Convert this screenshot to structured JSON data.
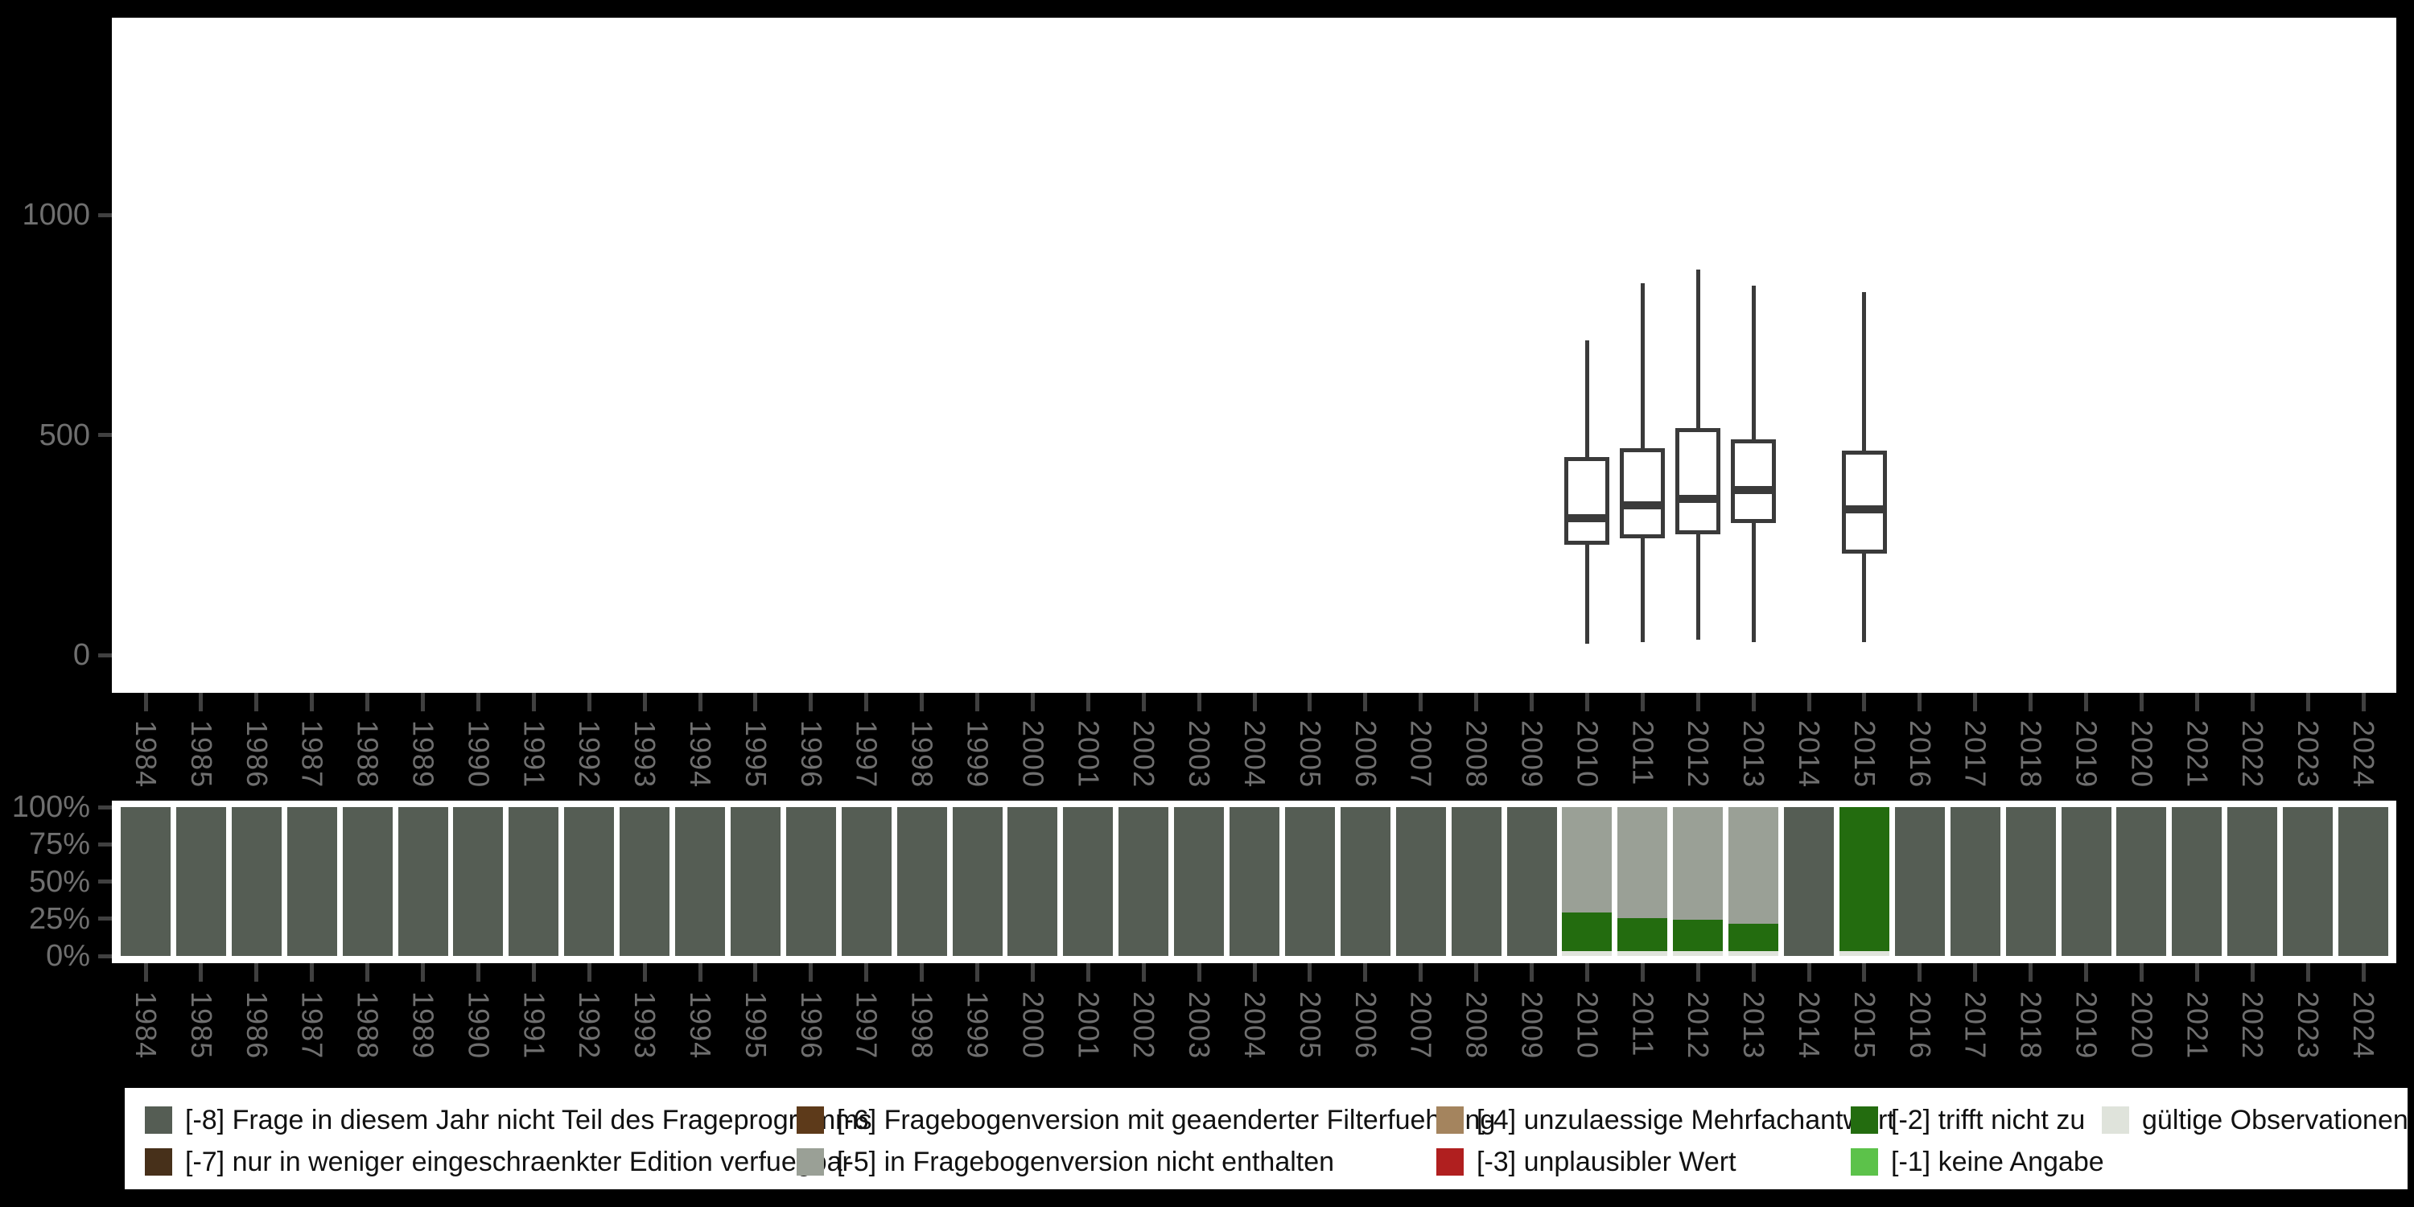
{
  "colors": {
    "page_bg": "#000000",
    "panel_bg": "#ffffff",
    "axis_text": "#6f6f6f",
    "tick": "#404040",
    "box_stroke": "#3a3a3a",
    "legend_text": "#111111",
    "-8": "#555d54",
    "-7": "#47301a",
    "-6": "#5d3a1a",
    "-5": "#9aa096",
    "-4": "#a4845e",
    "-3": "#b01f1f",
    "-2": "#236c0f",
    "-1": "#5cc24a",
    "valid": "#dfe3db"
  },
  "years": [
    "1984",
    "1985",
    "1986",
    "1987",
    "1988",
    "1989",
    "1990",
    "1991",
    "1992",
    "1993",
    "1994",
    "1995",
    "1996",
    "1997",
    "1998",
    "1999",
    "2000",
    "2001",
    "2002",
    "2003",
    "2004",
    "2005",
    "2006",
    "2007",
    "2008",
    "2009",
    "2010",
    "2011",
    "2012",
    "2013",
    "2014",
    "2015",
    "2016",
    "2017",
    "2018",
    "2019",
    "2020",
    "2021",
    "2022",
    "2023",
    "2024"
  ],
  "chart_data": [
    {
      "type": "boxplot",
      "title": "",
      "xlabel": "",
      "ylabel": "",
      "x_categories": [
        "1984",
        "1985",
        "1986",
        "1987",
        "1988",
        "1989",
        "1990",
        "1991",
        "1992",
        "1993",
        "1994",
        "1995",
        "1996",
        "1997",
        "1998",
        "1999",
        "2000",
        "2001",
        "2002",
        "2003",
        "2004",
        "2005",
        "2006",
        "2007",
        "2008",
        "2009",
        "2010",
        "2011",
        "2012",
        "2013",
        "2014",
        "2015",
        "2016",
        "2017",
        "2018",
        "2019",
        "2020",
        "2021",
        "2022",
        "2023",
        "2024"
      ],
      "y_tick_labels": [
        "1000",
        "500",
        "0"
      ],
      "y_tick_values": [
        1000,
        500,
        0
      ],
      "ylim": [
        -85,
        1450
      ],
      "grid": false,
      "boxes": [
        {
          "year": "2010",
          "whisker_low": 25,
          "q1": 250,
          "median": 310,
          "q3": 450,
          "whisker_high": 715
        },
        {
          "year": "2011",
          "whisker_low": 30,
          "q1": 265,
          "median": 340,
          "q3": 470,
          "whisker_high": 845
        },
        {
          "year": "2012",
          "whisker_low": 35,
          "q1": 275,
          "median": 355,
          "q3": 515,
          "whisker_high": 875
        },
        {
          "year": "2013",
          "whisker_low": 30,
          "q1": 300,
          "median": 375,
          "q3": 490,
          "whisker_high": 840
        },
        {
          "year": "2015",
          "whisker_low": 30,
          "q1": 230,
          "median": 330,
          "q3": 465,
          "whisker_high": 825
        }
      ]
    },
    {
      "type": "stacked-bar-percent",
      "title": "",
      "xlabel": "",
      "ylabel": "",
      "x_categories": [
        "1984",
        "1985",
        "1986",
        "1987",
        "1988",
        "1989",
        "1990",
        "1991",
        "1992",
        "1993",
        "1994",
        "1995",
        "1996",
        "1997",
        "1998",
        "1999",
        "2000",
        "2001",
        "2002",
        "2003",
        "2004",
        "2005",
        "2006",
        "2007",
        "2008",
        "2009",
        "2010",
        "2011",
        "2012",
        "2013",
        "2014",
        "2015",
        "2016",
        "2017",
        "2018",
        "2019",
        "2020",
        "2021",
        "2022",
        "2023",
        "2024"
      ],
      "y_tick_labels": [
        "100%",
        "75%",
        "50%",
        "25%",
        "0%"
      ],
      "y_tick_values": [
        100,
        75,
        50,
        25,
        0
      ],
      "ylim": [
        0,
        100
      ],
      "grid": false,
      "bars": [
        {
          "year": "1984",
          "segments": [
            {
              "key": "-8",
              "pct": 100
            }
          ]
        },
        {
          "year": "1985",
          "segments": [
            {
              "key": "-8",
              "pct": 100
            }
          ]
        },
        {
          "year": "1986",
          "segments": [
            {
              "key": "-8",
              "pct": 100
            }
          ]
        },
        {
          "year": "1987",
          "segments": [
            {
              "key": "-8",
              "pct": 100
            }
          ]
        },
        {
          "year": "1988",
          "segments": [
            {
              "key": "-8",
              "pct": 100
            }
          ]
        },
        {
          "year": "1989",
          "segments": [
            {
              "key": "-8",
              "pct": 100
            }
          ]
        },
        {
          "year": "1990",
          "segments": [
            {
              "key": "-8",
              "pct": 100
            }
          ]
        },
        {
          "year": "1991",
          "segments": [
            {
              "key": "-8",
              "pct": 100
            }
          ]
        },
        {
          "year": "1992",
          "segments": [
            {
              "key": "-8",
              "pct": 100
            }
          ]
        },
        {
          "year": "1993",
          "segments": [
            {
              "key": "-8",
              "pct": 100
            }
          ]
        },
        {
          "year": "1994",
          "segments": [
            {
              "key": "-8",
              "pct": 100
            }
          ]
        },
        {
          "year": "1995",
          "segments": [
            {
              "key": "-8",
              "pct": 100
            }
          ]
        },
        {
          "year": "1996",
          "segments": [
            {
              "key": "-8",
              "pct": 100
            }
          ]
        },
        {
          "year": "1997",
          "segments": [
            {
              "key": "-8",
              "pct": 100
            }
          ]
        },
        {
          "year": "1998",
          "segments": [
            {
              "key": "-8",
              "pct": 100
            }
          ]
        },
        {
          "year": "1999",
          "segments": [
            {
              "key": "-8",
              "pct": 100
            }
          ]
        },
        {
          "year": "2000",
          "segments": [
            {
              "key": "-8",
              "pct": 100
            }
          ]
        },
        {
          "year": "2001",
          "segments": [
            {
              "key": "-8",
              "pct": 100
            }
          ]
        },
        {
          "year": "2002",
          "segments": [
            {
              "key": "-8",
              "pct": 100
            }
          ]
        },
        {
          "year": "2003",
          "segments": [
            {
              "key": "-8",
              "pct": 100
            }
          ]
        },
        {
          "year": "2004",
          "segments": [
            {
              "key": "-8",
              "pct": 100
            }
          ]
        },
        {
          "year": "2005",
          "segments": [
            {
              "key": "-8",
              "pct": 100
            }
          ]
        },
        {
          "year": "2006",
          "segments": [
            {
              "key": "-8",
              "pct": 100
            }
          ]
        },
        {
          "year": "2007",
          "segments": [
            {
              "key": "-8",
              "pct": 100
            }
          ]
        },
        {
          "year": "2008",
          "segments": [
            {
              "key": "-8",
              "pct": 100
            }
          ]
        },
        {
          "year": "2009",
          "segments": [
            {
              "key": "-8",
              "pct": 100
            }
          ]
        },
        {
          "year": "2010",
          "segments": [
            {
              "key": "valid",
              "pct": 3
            },
            {
              "key": "-2",
              "pct": 26
            },
            {
              "key": "-5",
              "pct": 71
            }
          ]
        },
        {
          "year": "2011",
          "segments": [
            {
              "key": "valid",
              "pct": 3
            },
            {
              "key": "-2",
              "pct": 22.5
            },
            {
              "key": "-5",
              "pct": 74.5
            }
          ]
        },
        {
          "year": "2012",
          "segments": [
            {
              "key": "valid",
              "pct": 3
            },
            {
              "key": "-2",
              "pct": 21.5
            },
            {
              "key": "-5",
              "pct": 75.5
            }
          ]
        },
        {
          "year": "2013",
          "segments": [
            {
              "key": "valid",
              "pct": 3
            },
            {
              "key": "-2",
              "pct": 18.5
            },
            {
              "key": "-5",
              "pct": 78.5
            }
          ]
        },
        {
          "year": "2014",
          "segments": [
            {
              "key": "-8",
              "pct": 100
            }
          ]
        },
        {
          "year": "2015",
          "segments": [
            {
              "key": "valid",
              "pct": 3
            },
            {
              "key": "-2",
              "pct": 97
            }
          ]
        },
        {
          "year": "2016",
          "segments": [
            {
              "key": "-8",
              "pct": 100
            }
          ]
        },
        {
          "year": "2017",
          "segments": [
            {
              "key": "-8",
              "pct": 100
            }
          ]
        },
        {
          "year": "2018",
          "segments": [
            {
              "key": "-8",
              "pct": 100
            }
          ]
        },
        {
          "year": "2019",
          "segments": [
            {
              "key": "-8",
              "pct": 100
            }
          ]
        },
        {
          "year": "2020",
          "segments": [
            {
              "key": "-8",
              "pct": 100
            }
          ]
        },
        {
          "year": "2021",
          "segments": [
            {
              "key": "-8",
              "pct": 100
            }
          ]
        },
        {
          "year": "2022",
          "segments": [
            {
              "key": "-8",
              "pct": 100
            }
          ]
        },
        {
          "year": "2023",
          "segments": [
            {
              "key": "-8",
              "pct": 100
            }
          ]
        },
        {
          "year": "2024",
          "segments": [
            {
              "key": "-8",
              "pct": 100
            }
          ]
        }
      ]
    }
  ],
  "legend": {
    "columns": [
      [
        {
          "code": "[-8]",
          "label": "[-8] Frage in diesem Jahr nicht Teil des Frageprogramms",
          "color_key": "-8"
        },
        {
          "code": "[-7]",
          "label": "[-7] nur in weniger eingeschraenkter Edition verfuegbar",
          "color_key": "-7"
        }
      ],
      [
        {
          "code": "[-6]",
          "label": "[-6] Fragebogenversion mit geaenderter Filterfuehrung",
          "color_key": "-6"
        },
        {
          "code": "[-5]",
          "label": "[-5] in Fragebogenversion nicht enthalten",
          "color_key": "-5"
        }
      ],
      [
        {
          "code": "[-4]",
          "label": "[-4] unzulaessige Mehrfachantwort",
          "color_key": "-4"
        },
        {
          "code": "[-3]",
          "label": "[-3] unplausibler Wert",
          "color_key": "-3"
        }
      ],
      [
        {
          "code": "[-2]",
          "label": "[-2] trifft nicht zu",
          "color_key": "-2"
        },
        {
          "code": "[-1]",
          "label": "[-1] keine Angabe",
          "color_key": "-1"
        }
      ],
      [
        {
          "code": "",
          "label": "gültige Observationen",
          "color_key": "valid"
        }
      ]
    ]
  }
}
